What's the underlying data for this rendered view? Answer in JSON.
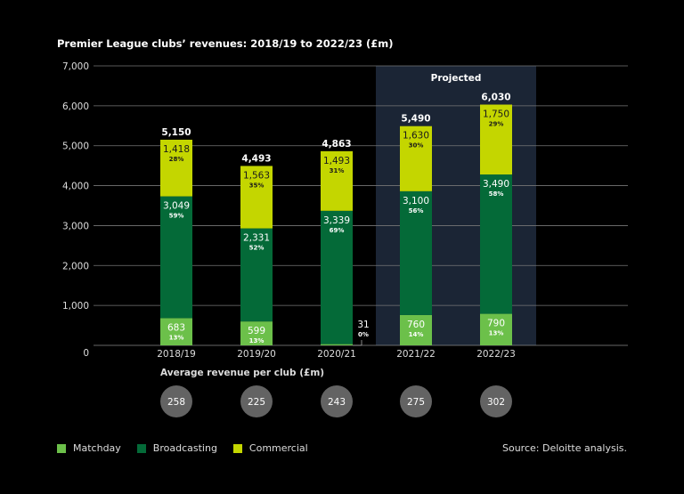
{
  "chart_data": {
    "type": "bar",
    "stacked": true,
    "title": "Premier League clubs’ revenues: 2018/19 to 2022/23 (£m)",
    "categories": [
      "2018/19",
      "2019/20",
      "2020/21",
      "2021/22",
      "2022/23"
    ],
    "series": [
      {
        "name": "Matchday",
        "color": "#6cc04a",
        "values": [
          683,
          599,
          31,
          760,
          790
        ],
        "labels": [
          "683",
          "599",
          "31",
          "760",
          "790"
        ],
        "pct": [
          "13%",
          "13%",
          "0%",
          "14%",
          "13%"
        ]
      },
      {
        "name": "Broadcasting",
        "color": "#046a38",
        "values": [
          3049,
          2331,
          3339,
          3100,
          3490
        ],
        "labels": [
          "3,049",
          "2,331",
          "3,339",
          "3,100",
          "3,490"
        ],
        "pct": [
          "59%",
          "52%",
          "69%",
          "56%",
          "58%"
        ]
      },
      {
        "name": "Commercial",
        "color": "#c4d600",
        "values": [
          1418,
          1563,
          1493,
          1630,
          1750
        ],
        "labels": [
          "1,418",
          "1,563",
          "1,493",
          "1,630",
          "1,750"
        ],
        "pct": [
          "28%",
          "35%",
          "31%",
          "30%",
          "29%"
        ]
      }
    ],
    "totals": [
      "5,150",
      "4,493",
      "4,863",
      "5,490",
      "6,030"
    ],
    "ylim": [
      0,
      7000
    ],
    "yticks": [
      "0",
      "1,000",
      "2,000",
      "3,000",
      "4,000",
      "5,000",
      "6,000",
      "7,000"
    ],
    "grid": true,
    "projected_label": "Projected",
    "projected_categories": [
      "2021/22",
      "2022/23"
    ],
    "legend_position": "bottom-left"
  },
  "avg": {
    "label": "Average revenue per club (£m)",
    "values": [
      "258",
      "225",
      "243",
      "275",
      "302"
    ]
  },
  "legend": [
    "Matchday",
    "Broadcasting",
    "Commercial"
  ],
  "source": "Source: Deloitte analysis."
}
